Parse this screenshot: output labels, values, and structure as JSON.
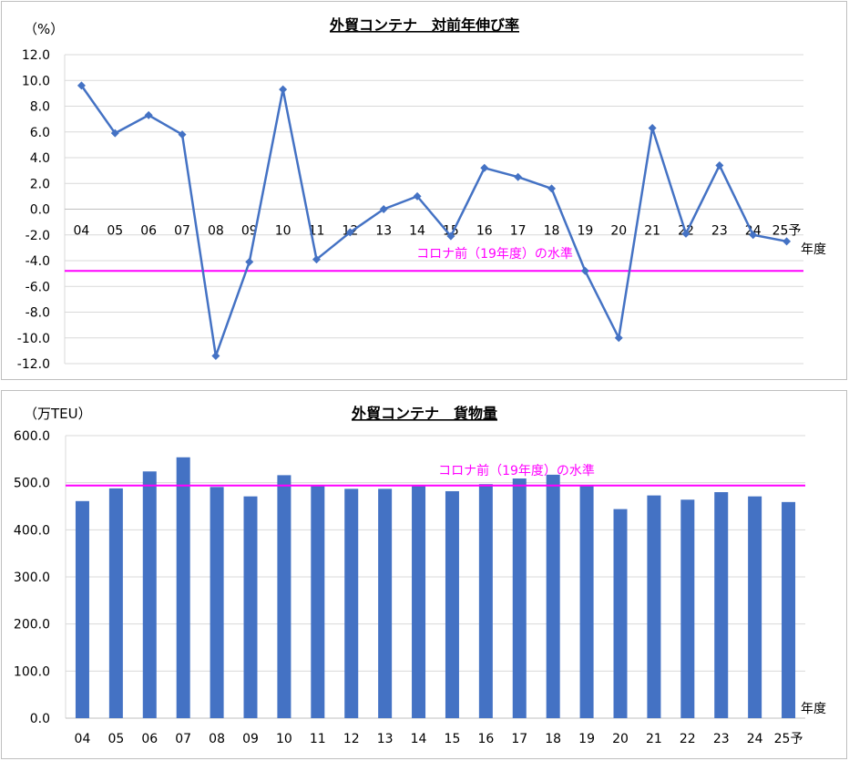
{
  "chart_data": [
    {
      "type": "line",
      "title": "外貿コンテナ　対前年伸び率",
      "ylabel": "（%）",
      "xlabel": "年度",
      "categories": [
        "04",
        "05",
        "06",
        "07",
        "08",
        "09",
        "10",
        "11",
        "12",
        "13",
        "14",
        "15",
        "16",
        "17",
        "18",
        "19",
        "20",
        "21",
        "22",
        "23",
        "24",
        "25予"
      ],
      "series": [
        {
          "values": [
            9.6,
            5.9,
            7.3,
            5.8,
            -11.4,
            -4.1,
            9.3,
            -3.9,
            -1.8,
            0.0,
            1.0,
            -2.1,
            3.2,
            2.5,
            1.6,
            -4.8,
            -10.0,
            6.3,
            -1.9,
            3.4,
            -2.0,
            -2.5
          ]
        }
      ],
      "ylim": [
        -12.0,
        12.0
      ],
      "yticks": [
        "12.0",
        "10.0",
        "8.0",
        "6.0",
        "4.0",
        "2.0",
        "0.0",
        "-2.0",
        "-4.0",
        "-6.0",
        "-8.0",
        "-10.0",
        "-12.0"
      ],
      "reference_line": {
        "value": -4.8,
        "label": "コロナ前（19年度）の水準"
      },
      "grid": true,
      "colors": {
        "series": "#4472c4",
        "reference": "#ff00ff",
        "grid": "#d9d9d9"
      }
    },
    {
      "type": "bar",
      "title": "外貿コンテナ　貨物量",
      "ylabel": "（万TEU）",
      "xlabel": "年度",
      "categories": [
        "04",
        "05",
        "06",
        "07",
        "08",
        "09",
        "10",
        "11",
        "12",
        "13",
        "14",
        "15",
        "16",
        "17",
        "18",
        "19",
        "20",
        "21",
        "22",
        "23",
        "24",
        "25予"
      ],
      "series": [
        {
          "values": [
            461,
            488,
            524,
            554,
            491,
            471,
            516,
            494,
            487,
            487,
            493,
            482,
            497,
            509,
            517,
            493,
            444,
            473,
            464,
            480,
            471,
            459
          ]
        }
      ],
      "ylim": [
        0,
        600
      ],
      "yticks": [
        "600.0",
        "500.0",
        "400.0",
        "300.0",
        "200.0",
        "100.0",
        "0.0"
      ],
      "reference_line": {
        "value": 494,
        "label": "コロナ前（19年度）の水準"
      },
      "grid": true,
      "colors": {
        "series": "#4472c4",
        "reference": "#ff00ff",
        "grid": "#d9d9d9"
      }
    }
  ]
}
